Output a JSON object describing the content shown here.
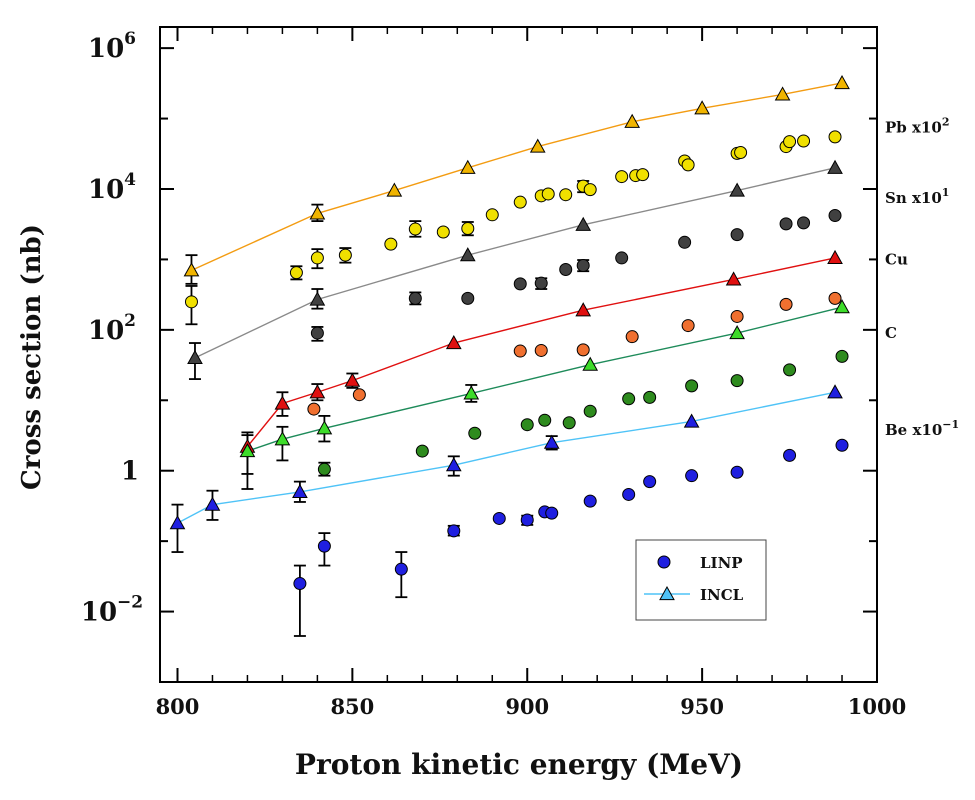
{
  "chart_data": {
    "type": "scatter",
    "xlabel": "Proton kinetic energy (MeV)",
    "ylabel": "Cross section (nb)",
    "xlim": [
      795,
      1000
    ],
    "ylim_log10": [
      -3,
      6.3
    ],
    "yscale": "log",
    "x_ticks": [
      {
        "value": 800,
        "label": "800"
      },
      {
        "value": 850,
        "label": "850"
      },
      {
        "value": 900,
        "label": "900"
      },
      {
        "value": 950,
        "label": "950"
      },
      {
        "value": 1000,
        "label": "1000"
      }
    ],
    "y_ticks": [
      {
        "exp": 6,
        "label": "10",
        "sup": "6"
      },
      {
        "exp": 4,
        "label": "10",
        "sup": "4"
      },
      {
        "exp": 2,
        "label": "10",
        "sup": "2"
      },
      {
        "exp": 0,
        "label": "1",
        "sup": ""
      },
      {
        "exp": -2,
        "label": "10",
        "sup": "−2"
      }
    ],
    "legend": {
      "position": "bottom-right",
      "entries": [
        {
          "label": "LINP",
          "marker": "circle",
          "color": "#1f1fe0"
        },
        {
          "label": "INCL",
          "marker": "triangle",
          "color": "#4fc3f7",
          "line": "#4fc3f7"
        }
      ]
    },
    "series": [
      {
        "name": "Pb x10²",
        "label_base": "Pb x10",
        "label_sup": "2",
        "label_y": 75000,
        "color": "#f0b400",
        "line_color": "#f39c12",
        "linp": [],
        "incl": [
          {
            "x": 804,
            "y": 700,
            "lo": 450,
            "hi": 1150
          },
          {
            "x": 840,
            "y": 4500,
            "lo": 3500,
            "hi": 6000
          },
          {
            "x": 862,
            "y": 9500
          },
          {
            "x": 883,
            "y": 20000
          },
          {
            "x": 903,
            "y": 40000
          },
          {
            "x": 930,
            "y": 90000
          },
          {
            "x": 950,
            "y": 140000
          },
          {
            "x": 973,
            "y": 220000
          },
          {
            "x": 990,
            "y": 320000
          }
        ]
      },
      {
        "name": "Sn x10¹",
        "label_base": "Sn x10",
        "label_sup": "1",
        "label_y": 7500,
        "color": "#f0e000",
        "line_color": "#7a7a7a",
        "linp": [
          {
            "x": 804,
            "y": 250,
            "lo": 120,
            "hi": 420
          },
          {
            "x": 834,
            "y": 650,
            "lo": 520,
            "hi": 800
          },
          {
            "x": 840,
            "y": 1050,
            "lo": 750,
            "hi": 1400
          },
          {
            "x": 848,
            "y": 1150,
            "lo": 900,
            "hi": 1450
          },
          {
            "x": 861,
            "y": 1650
          },
          {
            "x": 868,
            "y": 2700,
            "lo": 2100,
            "hi": 3500
          },
          {
            "x": 876,
            "y": 2450
          },
          {
            "x": 883,
            "y": 2750,
            "lo": 2200,
            "hi": 3400
          },
          {
            "x": 890,
            "y": 4300
          },
          {
            "x": 898,
            "y": 6500
          },
          {
            "x": 904,
            "y": 8000
          },
          {
            "x": 906,
            "y": 8500
          },
          {
            "x": 911,
            "y": 8300
          },
          {
            "x": 916,
            "y": 11000,
            "lo": 9000,
            "hi": 13000
          },
          {
            "x": 918,
            "y": 9800
          },
          {
            "x": 927,
            "y": 15000
          },
          {
            "x": 931,
            "y": 15500
          },
          {
            "x": 933,
            "y": 16000
          },
          {
            "x": 945,
            "y": 25000
          },
          {
            "x": 946,
            "y": 22000
          },
          {
            "x": 960,
            "y": 32000
          },
          {
            "x": 961,
            "y": 33000
          },
          {
            "x": 974,
            "y": 40000
          },
          {
            "x": 975,
            "y": 47000
          },
          {
            "x": 979,
            "y": 48000
          },
          {
            "x": 988,
            "y": 55000
          }
        ],
        "incl": []
      },
      {
        "name": "Sn x10¹ (INCL)",
        "label_base": "",
        "label_sup": "",
        "color": "#404040",
        "line_color": "#8a8a8a",
        "linp": [
          {
            "x": 840,
            "y": 90,
            "lo": 70,
            "hi": 110
          },
          {
            "x": 868,
            "y": 280,
            "lo": 230,
            "hi": 340
          },
          {
            "x": 883,
            "y": 280
          },
          {
            "x": 898,
            "y": 450
          },
          {
            "x": 904,
            "y": 460,
            "lo": 380,
            "hi": 540
          },
          {
            "x": 911,
            "y": 720
          },
          {
            "x": 916,
            "y": 820,
            "lo": 680,
            "hi": 980
          },
          {
            "x": 927,
            "y": 1050
          },
          {
            "x": 945,
            "y": 1750
          },
          {
            "x": 960,
            "y": 2250
          },
          {
            "x": 974,
            "y": 3200
          },
          {
            "x": 979,
            "y": 3300
          },
          {
            "x": 988,
            "y": 4200
          }
        ],
        "incl": [
          {
            "x": 805,
            "y": 40,
            "lo": 20,
            "hi": 65
          },
          {
            "x": 840,
            "y": 270,
            "lo": 200,
            "hi": 380
          },
          {
            "x": 883,
            "y": 1150
          },
          {
            "x": 916,
            "y": 3100
          },
          {
            "x": 960,
            "y": 9500
          },
          {
            "x": 988,
            "y": 20000
          }
        ]
      },
      {
        "name": "Cu",
        "label_base": "Cu",
        "label_sup": "",
        "label_y": 1000,
        "color": "#f07030",
        "line_color": "#e01010",
        "linp": [
          {
            "x": 839,
            "y": 7.5
          },
          {
            "x": 852,
            "y": 12
          },
          {
            "x": 898,
            "y": 50
          },
          {
            "x": 904,
            "y": 51
          },
          {
            "x": 916,
            "y": 52
          },
          {
            "x": 930,
            "y": 80
          },
          {
            "x": 946,
            "y": 115
          },
          {
            "x": 960,
            "y": 155
          },
          {
            "x": 974,
            "y": 230
          },
          {
            "x": 988,
            "y": 280
          }
        ],
        "incl": []
      },
      {
        "name": "Cu (INCL)",
        "label_base": "",
        "label_sup": "",
        "color": "#e01010",
        "line_color": "#e01010",
        "linp": [],
        "incl": [
          {
            "x": 820,
            "y": 2.2,
            "lo": 0.9,
            "hi": 3.5
          },
          {
            "x": 830,
            "y": 9,
            "lo": 6,
            "hi": 13
          },
          {
            "x": 840,
            "y": 13,
            "lo": 10,
            "hi": 17
          },
          {
            "x": 850,
            "y": 19,
            "lo": 15,
            "hi": 24
          },
          {
            "x": 879,
            "y": 65
          },
          {
            "x": 916,
            "y": 190
          },
          {
            "x": 959,
            "y": 520
          },
          {
            "x": 988,
            "y": 1050
          }
        ]
      },
      {
        "name": "C",
        "label_base": "C",
        "label_sup": "",
        "label_y": 90,
        "color": "#2e8b1e",
        "line_color": "#1e8b5a",
        "linp": [
          {
            "x": 842,
            "y": 1.05,
            "lo": 0.85,
            "hi": 1.3
          },
          {
            "x": 870,
            "y": 1.9
          },
          {
            "x": 885,
            "y": 3.4
          },
          {
            "x": 900,
            "y": 4.5
          },
          {
            "x": 905,
            "y": 5.2
          },
          {
            "x": 912,
            "y": 4.8
          },
          {
            "x": 918,
            "y": 7
          },
          {
            "x": 929,
            "y": 10.5
          },
          {
            "x": 935,
            "y": 11
          },
          {
            "x": 947,
            "y": 16
          },
          {
            "x": 960,
            "y": 19
          },
          {
            "x": 975,
            "y": 27
          },
          {
            "x": 990,
            "y": 42
          }
        ],
        "incl": []
      },
      {
        "name": "C (INCL)",
        "label_base": "",
        "label_sup": "",
        "color": "#3ddc2a",
        "line_color": "#1e8b5a",
        "linp": [],
        "incl": [
          {
            "x": 820,
            "y": 1.9,
            "lo": 0.55,
            "hi": 3.2
          },
          {
            "x": 830,
            "y": 2.8,
            "lo": 1.4,
            "hi": 4.2
          },
          {
            "x": 842,
            "y": 4,
            "lo": 2.6,
            "hi": 6
          },
          {
            "x": 884,
            "y": 12.5,
            "lo": 9.5,
            "hi": 16.5
          },
          {
            "x": 918,
            "y": 32
          },
          {
            "x": 960,
            "y": 90
          },
          {
            "x": 990,
            "y": 210
          }
        ]
      },
      {
        "name": "Be x10⁻¹",
        "label_base": "Be x10",
        "label_sup": "−1",
        "label_y": 3.8,
        "color": "#1f1fe0",
        "line_color": "#4fc3f7",
        "linp": [
          {
            "x": 835,
            "y": 0.025,
            "lo": 0.0045,
            "hi": 0.045
          },
          {
            "x": 842,
            "y": 0.085,
            "lo": 0.045,
            "hi": 0.13
          },
          {
            "x": 864,
            "y": 0.04,
            "lo": 0.016,
            "hi": 0.07
          },
          {
            "x": 879,
            "y": 0.14,
            "lo": 0.12,
            "hi": 0.165
          },
          {
            "x": 892,
            "y": 0.21
          },
          {
            "x": 900,
            "y": 0.2,
            "lo": 0.17,
            "hi": 0.23
          },
          {
            "x": 905,
            "y": 0.26
          },
          {
            "x": 907,
            "y": 0.25
          },
          {
            "x": 918,
            "y": 0.37
          },
          {
            "x": 929,
            "y": 0.46
          },
          {
            "x": 935,
            "y": 0.7
          },
          {
            "x": 947,
            "y": 0.85
          },
          {
            "x": 960,
            "y": 0.95
          },
          {
            "x": 975,
            "y": 1.65
          },
          {
            "x": 990,
            "y": 2.3
          }
        ],
        "incl": [
          {
            "x": 800,
            "y": 0.18,
            "lo": 0.07,
            "hi": 0.33
          },
          {
            "x": 810,
            "y": 0.33,
            "lo": 0.2,
            "hi": 0.52
          },
          {
            "x": 835,
            "y": 0.5,
            "lo": 0.36,
            "hi": 0.7
          },
          {
            "x": 879,
            "y": 1.2,
            "lo": 0.85,
            "hi": 1.6
          },
          {
            "x": 907,
            "y": 2.5,
            "lo": 2.0,
            "hi": 3.1
          },
          {
            "x": 947,
            "y": 5
          },
          {
            "x": 988,
            "y": 13
          }
        ]
      }
    ]
  }
}
